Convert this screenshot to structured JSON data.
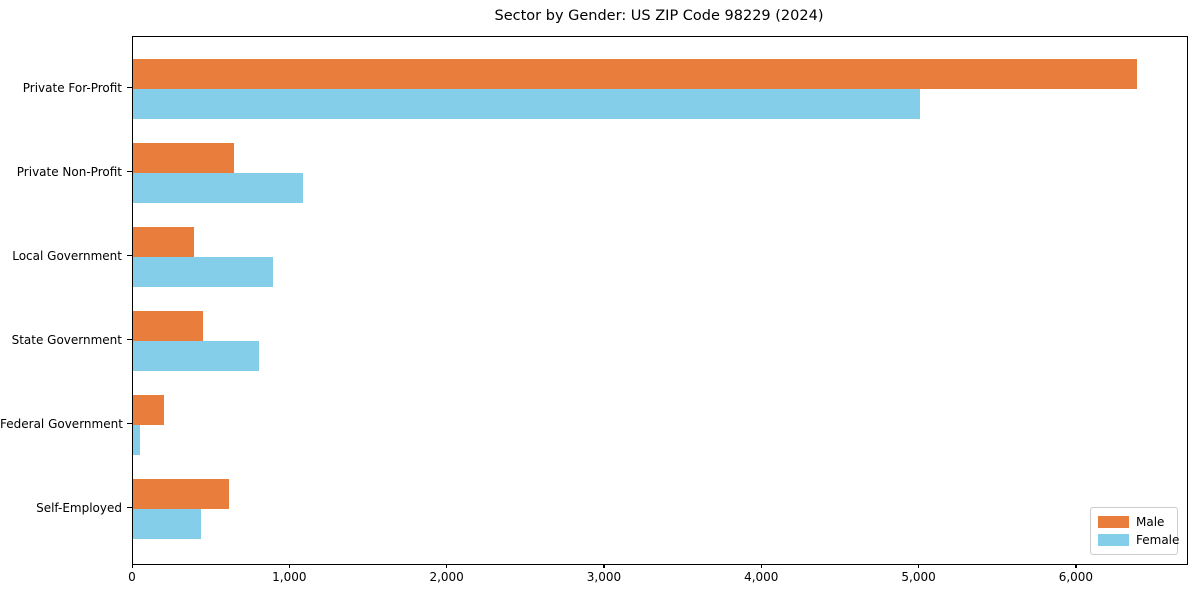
{
  "chart_data": {
    "type": "bar",
    "orientation": "horizontal",
    "title": "Sector by Gender: US ZIP Code 98229 (2024)",
    "categories": [
      "Private For-Profit",
      "Private Non-Profit",
      "Local Government",
      "State Government",
      "Federal Government",
      "Self-Employed"
    ],
    "series": [
      {
        "name": "Male",
        "color": "#e87d3c",
        "values": [
          6380,
          645,
          390,
          445,
          200,
          610
        ]
      },
      {
        "name": "Female",
        "color": "#85cee9",
        "values": [
          5000,
          1080,
          890,
          800,
          45,
          430
        ]
      }
    ],
    "xlabel": "",
    "ylabel": "",
    "xlim": [
      0,
      6700
    ],
    "xticks": [
      0,
      1000,
      2000,
      3000,
      4000,
      5000,
      6000
    ],
    "xtick_labels": [
      "0",
      "1,000",
      "2,000",
      "3,000",
      "4,000",
      "5,000",
      "6,000"
    ],
    "grid": false,
    "legend": {
      "position": "lower right",
      "entries": [
        "Male",
        "Female"
      ]
    }
  }
}
